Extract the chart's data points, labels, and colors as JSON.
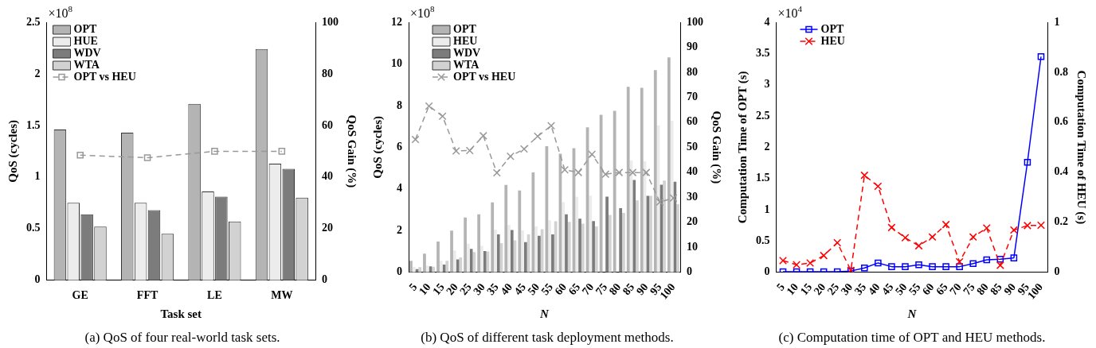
{
  "chart_data": [
    {
      "type": "bar",
      "title": "(a) QoS of four real-world task sets.",
      "xlabel": "Task set",
      "ylabel": "QoS (cycles)",
      "y2label": "QoS Gain (%)",
      "categories": [
        "GE",
        "FFT",
        "LE",
        "MW"
      ],
      "series": [
        {
          "name": "OPT",
          "color": "#b4b4b4",
          "values": [
            1.46,
            1.43,
            1.71,
            2.24
          ]
        },
        {
          "name": "HUE",
          "color": "#ececec",
          "values": [
            0.75,
            0.75,
            0.86,
            1.13
          ]
        },
        {
          "name": "WDV",
          "color": "#7c7c7c",
          "values": [
            0.64,
            0.68,
            0.81,
            1.08
          ]
        },
        {
          "name": "WTA",
          "color": "#d2d2d2",
          "values": [
            0.52,
            0.45,
            0.57,
            0.8
          ]
        },
        {
          "name": "OPT vs HEU",
          "type": "line",
          "axis": "y2",
          "color": "#999999",
          "marker": "square",
          "line_style": "dashed",
          "values": [
            48.5,
            47.5,
            50,
            50
          ]
        }
      ],
      "ylim": [
        0,
        2.5
      ],
      "yticks": [
        0,
        0.5,
        1,
        1.5,
        2,
        2.5
      ],
      "y2lim": [
        0,
        100
      ],
      "y2ticks": [
        0,
        20,
        40,
        60,
        80,
        100
      ],
      "legend": "top left",
      "annotations": [
        "×10$^{8}$"
      ]
    },
    {
      "type": "bar",
      "title": "(b) QoS of different task deployment methods.",
      "xlabel": "N",
      "ylabel": "QoS (cycles)",
      "y2label": "QoS Gain (%)",
      "categories": [
        "5",
        "10",
        "15",
        "20",
        "25",
        "30",
        "35",
        "40",
        "45",
        "50",
        "55",
        "60",
        "65",
        "70",
        "75",
        "80",
        "85",
        "90",
        "95",
        "100"
      ],
      "series": [
        {
          "name": "OPT",
          "color": "#b4b4b4",
          "values": [
            0.55,
            0.89,
            1.48,
            2.0,
            2.63,
            2.78,
            3.35,
            4.19,
            3.93,
            4.79,
            6.05,
            5.69,
            5.96,
            6.96,
            7.56,
            7.75,
            8.9,
            8.85,
            9.7,
            10.31
          ]
        },
        {
          "name": "HEU",
          "color": "#ececec",
          "values": [
            0.26,
            0.31,
            0.55,
            1.05,
            1.37,
            1.28,
            2.05,
            2.27,
            2.01,
            2.2,
            2.5,
            3.36,
            3.62,
            3.68,
            null,
            null,
            5.37,
            5.33,
            7.05,
            7.27
          ]
        },
        {
          "name": "WDV",
          "color": "#7c7c7c",
          "values": [
            0.15,
            0.28,
            0.37,
            0.62,
            1.12,
            1.02,
            1.82,
            2.03,
            1.45,
            1.75,
            1.82,
            2.78,
            2.57,
            2.46,
            3.63,
            3.08,
            4.43,
            3.67,
            4.2,
            4.35
          ]
        },
        {
          "name": "WTA",
          "color": "#d2d2d2",
          "values": [
            0.25,
            0.27,
            0.55,
            0.71,
            0.97,
            1.0,
            1.4,
            1.53,
            1.82,
            2.07,
            2.45,
            2.42,
            2.33,
            2.2,
            2.75,
            2.85,
            3.45,
            3.67,
            4.4,
            3.27
          ]
        },
        {
          "name": "OPT vs HEU",
          "type": "line",
          "axis": "y2",
          "color": "#999999",
          "marker": "cross",
          "line_style": "dashed",
          "values": [
            53.1,
            66.5,
            62.4,
            48.5,
            48.7,
            54.6,
            39.8,
            46.4,
            49.3,
            54.4,
            58.6,
            41,
            39.9,
            47.2,
            39.2,
            39.9,
            39.9,
            39.9,
            28.1,
            29.7
          ]
        }
      ],
      "ylim": [
        0,
        12
      ],
      "yticks": [
        0,
        2,
        4,
        6,
        8,
        10,
        12
      ],
      "y2lim": [
        0,
        100
      ],
      "y2ticks": [
        0,
        10,
        20,
        30,
        40,
        50,
        60,
        70,
        80,
        90,
        100
      ],
      "legend": "top left",
      "annotations": [
        "×10$^{8}$"
      ]
    },
    {
      "type": "line",
      "title": "(c) Computation time of OPT and HEU methods.",
      "xlabel": "N",
      "ylabel": "Computation Time of OPT (s)",
      "y2label": "Computation Time of HEU (s)",
      "categories": [
        "5",
        "10",
        "15",
        "20",
        "25",
        "30",
        "35",
        "40",
        "45",
        "50",
        "55",
        "60",
        "65",
        "70",
        "75",
        "80",
        "85",
        "90",
        "95",
        "100"
      ],
      "series": [
        {
          "name": "OPT",
          "color": "#0000ff",
          "marker": "square",
          "line_style": "solid",
          "values": [
            0.01,
            0.01,
            0.01,
            0.01,
            0.01,
            0.02,
            0.07,
            0.15,
            0.09,
            0.09,
            0.12,
            0.09,
            0.09,
            0.09,
            0.14,
            0.2,
            0.21,
            0.23,
            1.76,
            3.45
          ]
        },
        {
          "name": "HEU",
          "color": "#ff0000",
          "marker": "cross",
          "line_style": "dashed",
          "axis": "y2",
          "values": [
            0.047,
            0.03,
            0.037,
            0.067,
            0.118,
            0.008,
            0.388,
            0.344,
            0.179,
            0.138,
            0.106,
            0.141,
            0.191,
            0.042,
            0.141,
            0.177,
            0.028,
            0.169,
            0.187,
            0.188
          ]
        }
      ],
      "ylim": [
        0,
        4
      ],
      "yticks": [
        0,
        0.5,
        1,
        1.5,
        2,
        2.5,
        3,
        3.5,
        4
      ],
      "y2lim": [
        0,
        1
      ],
      "y2ticks": [
        0,
        0.2,
        0.4,
        0.6,
        0.8,
        1
      ],
      "legend": "top left",
      "annotations": [
        "×10$^{4}$"
      ]
    }
  ]
}
